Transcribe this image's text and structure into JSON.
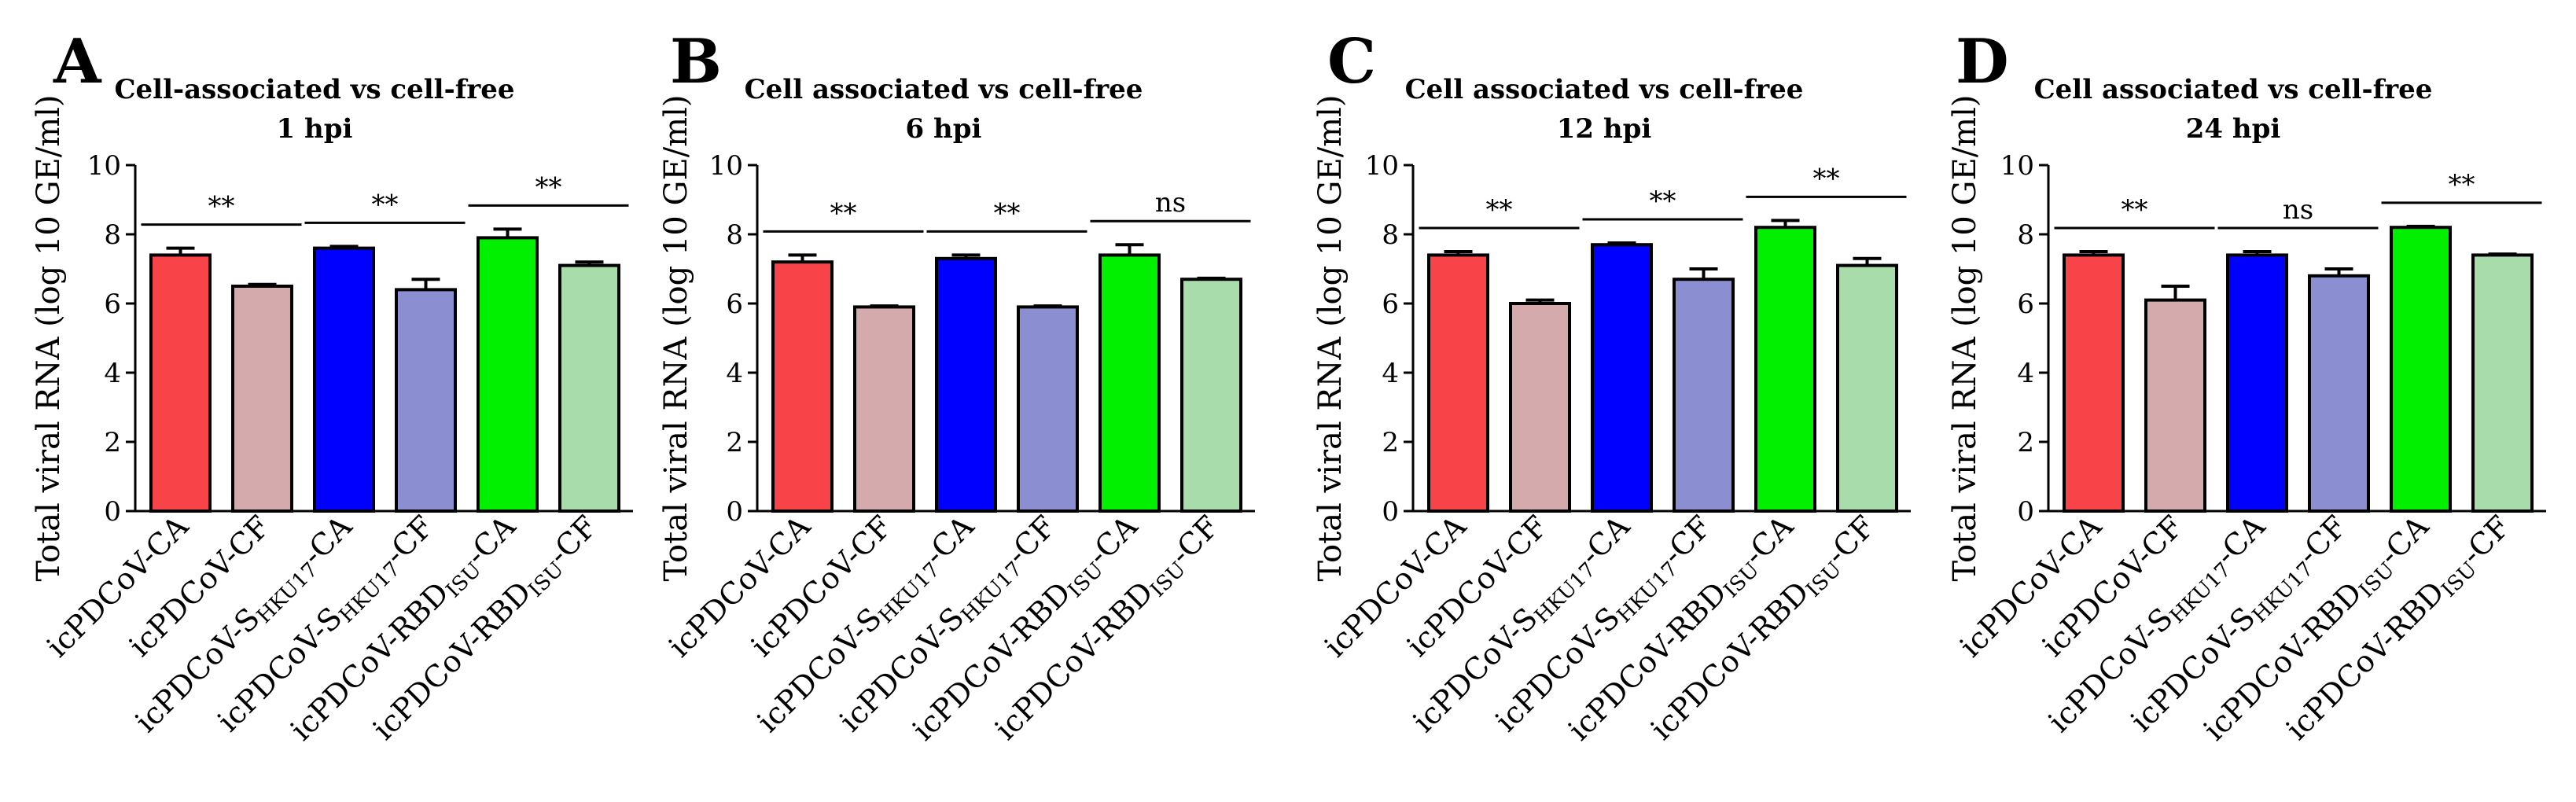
{
  "figure": {
    "description_none": true
  },
  "chart_data": [
    {
      "type": "bar",
      "panel": "A",
      "title": [
        "Cell-associated vs cell-free",
        "1 hpi"
      ],
      "xlabel": "",
      "ylabel": "Total viral RNA (log 10 GE/ml)",
      "ylim": [
        0,
        10
      ],
      "yticks": [
        "0",
        "2",
        "4",
        "6",
        "8",
        "10"
      ],
      "categories": [
        "icPDCoV-CA",
        "icPDCoV-CF",
        "icPDCoV-SHKU17-CA",
        "icPDCoV-SHKU17-CF",
        "icPDCoV-RBDISU-CA",
        "icPDCoV-RBDISU-CF"
      ],
      "values": [
        7.4,
        6.5,
        7.6,
        6.4,
        7.9,
        7.1
      ],
      "errors": [
        0.2,
        0.05,
        0.05,
        0.3,
        0.25,
        0.1
      ],
      "colors": [
        "#f84449",
        "#d5aaad",
        "#0000ff",
        "#8b8fd1",
        "#00f000",
        "#a8dcaa"
      ],
      "significance": [
        "**",
        "**",
        "**"
      ]
    },
    {
      "type": "bar",
      "panel": "B",
      "title": [
        "Cell associated vs cell-free",
        "6 hpi"
      ],
      "xlabel": "",
      "ylabel": "Total viral RNA (log 10 GE/ml)",
      "ylim": [
        0,
        10
      ],
      "yticks": [
        "0",
        "2",
        "4",
        "6",
        "8",
        "10"
      ],
      "categories": [
        "icPDCoV-CA",
        "icPDCoV-CF",
        "icPDCoV-SHKU17-CA",
        "icPDCoV-SHKU17-CF",
        "icPDCoV-RBDISU-CA",
        "icPDCoV-RBDISU-CF"
      ],
      "values": [
        7.2,
        5.9,
        7.3,
        5.9,
        7.4,
        6.7
      ],
      "errors": [
        0.2,
        0.03,
        0.1,
        0.03,
        0.3,
        0.03
      ],
      "colors": [
        "#f84449",
        "#d5aaad",
        "#0000ff",
        "#8b8fd1",
        "#00f000",
        "#a8dcaa"
      ],
      "significance": [
        "**",
        "**",
        "ns"
      ]
    },
    {
      "type": "bar",
      "panel": "C",
      "title": [
        "Cell associated vs cell-free",
        "12 hpi"
      ],
      "xlabel": "",
      "ylabel": "Total viral RNA (log 10 GE/ml)",
      "ylim": [
        0,
        10
      ],
      "yticks": [
        "0",
        "2",
        "4",
        "6",
        "8",
        "10"
      ],
      "categories": [
        "icPDCoV-CA",
        "icPDCoV-CF",
        "icPDCoV-SHKU17-CA",
        "icPDCoV-SHKU17-CF",
        "icPDCoV-RBDISU-CA",
        "icPDCoV-RBDISU-CF"
      ],
      "values": [
        7.4,
        6.0,
        7.7,
        6.7,
        8.2,
        7.1
      ],
      "errors": [
        0.1,
        0.1,
        0.05,
        0.3,
        0.2,
        0.2
      ],
      "colors": [
        "#f84449",
        "#d5aaad",
        "#0000ff",
        "#8b8fd1",
        "#00f000",
        "#a8dcaa"
      ],
      "significance": [
        "**",
        "**",
        "**"
      ]
    },
    {
      "type": "bar",
      "panel": "D",
      "title": [
        "Cell associated vs cell-free",
        "24 hpi"
      ],
      "xlabel": "",
      "ylabel": "Total viral RNA (log 10 GE/ml)",
      "ylim": [
        0,
        10
      ],
      "yticks": [
        "0",
        "2",
        "4",
        "6",
        "8",
        "10"
      ],
      "categories": [
        "icPDCoV-CA",
        "icPDCoV-CF",
        "icPDCoV-SHKU17-CA",
        "icPDCoV-SHKU17-CF",
        "icPDCoV-RBDISU-CA",
        "icPDCoV-RBDISU-CF"
      ],
      "values": [
        7.4,
        6.1,
        7.4,
        6.8,
        8.2,
        7.4
      ],
      "errors": [
        0.1,
        0.4,
        0.1,
        0.2,
        0.03,
        0.03
      ],
      "colors": [
        "#f84449",
        "#d5aaad",
        "#0000ff",
        "#8b8fd1",
        "#00f000",
        "#a8dcaa"
      ],
      "significance": [
        "**",
        "ns",
        "**"
      ]
    }
  ]
}
